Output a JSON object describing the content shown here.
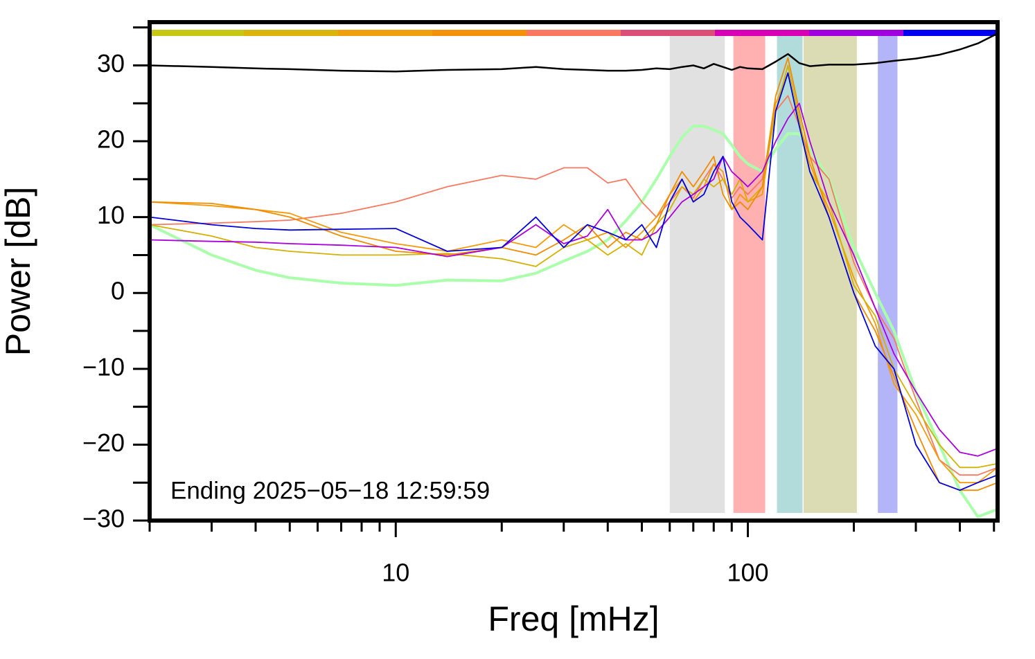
{
  "chart_data": {
    "type": "line",
    "x_label": "Freq [mHz]",
    "y_label": "Power [dB]",
    "annotation": "Ending 2025−05−18 12:59:59",
    "x_log": true,
    "xlim": [
      2,
      512
    ],
    "ylim": [
      -30,
      35.7
    ],
    "xticks": [
      10,
      100
    ],
    "x_minor_ticks": [
      2,
      3,
      4,
      5,
      6,
      7,
      8,
      9,
      20,
      30,
      40,
      50,
      60,
      70,
      80,
      90,
      200,
      300,
      400,
      500
    ],
    "yticks": [
      {
        "value": -30,
        "label": "−30"
      },
      {
        "value": -20,
        "label": "−20"
      },
      {
        "value": -10,
        "label": "−10"
      },
      0,
      10,
      20,
      30
    ],
    "y_minor_ticks": [
      -25,
      -15,
      -5,
      5,
      15,
      25,
      35
    ],
    "color_bar": [
      "#c8c814",
      "#dab40a",
      "#f0a00a",
      "#f5900a",
      "#fa7860",
      "#dc5078",
      "#d800b4",
      "#a000e0",
      "#0000f0"
    ],
    "bands": [
      {
        "x": [
          60,
          86
        ],
        "color": "#e1e1e1"
      },
      {
        "x": [
          91,
          112
        ],
        "color": "#ffb0b0"
      },
      {
        "x": [
          121,
          143
        ],
        "color": "#b2dcdc"
      },
      {
        "x": [
          144,
          204
        ],
        "color": "#dcdcb4"
      },
      {
        "x": [
          234,
          266
        ],
        "color": "#b4b4f8"
      }
    ],
    "x": [
      2,
      3,
      4,
      5,
      7,
      10,
      14,
      20,
      25,
      30,
      35,
      40,
      45,
      50,
      55,
      60,
      65,
      70,
      75,
      80,
      85,
      90,
      95,
      100,
      110,
      120,
      130,
      140,
      150,
      170,
      200,
      230,
      260,
      300,
      350,
      400,
      450,
      512
    ],
    "series": [
      {
        "color": "#000000",
        "line_width": 2.5,
        "values": [
          30,
          29.8,
          29.6,
          29.5,
          29.3,
          29.2,
          29.4,
          29.5,
          29.8,
          29.5,
          29.4,
          29.3,
          29.3,
          29.4,
          29.6,
          29.5,
          29.8,
          30,
          29.6,
          30.2,
          29.8,
          29.4,
          29.8,
          29.6,
          29.5,
          30.5,
          31.5,
          30.3,
          29.9,
          30.1,
          30.1,
          30.3,
          30.6,
          30.9,
          31.4,
          32.1,
          32.9,
          34.2
        ]
      },
      {
        "color": "#aaffaa",
        "line_width": 4,
        "values": [
          9,
          5,
          3,
          2,
          1.3,
          1,
          1.7,
          1.6,
          2.6,
          4.2,
          5.5,
          7,
          9.5,
          12,
          15,
          18,
          20.5,
          22,
          22,
          21.5,
          21,
          19.5,
          18,
          17,
          16,
          19,
          21,
          21,
          19,
          15,
          6,
          0,
          -5,
          -13,
          -20,
          -26,
          -29.5,
          -28.5
        ]
      },
      {
        "color": "#fa7860",
        "line_width": 1.8,
        "values": [
          9,
          9.2,
          9.4,
          9.6,
          10.5,
          12,
          14,
          15.5,
          15,
          16.5,
          16.5,
          14.5,
          15,
          12,
          10,
          12,
          14,
          12.5,
          15,
          17,
          15,
          12.5,
          14,
          13,
          15,
          24,
          26,
          22,
          18,
          15,
          4,
          -2,
          -6,
          -14,
          -22,
          -24,
          -24,
          -23
        ]
      },
      {
        "color": "#f59a0a",
        "line_width": 1.8,
        "values": [
          12,
          11.5,
          11,
          10.5,
          8,
          6.5,
          5.5,
          7,
          6,
          9,
          7,
          8,
          6,
          8,
          10,
          13,
          15,
          12,
          14,
          17,
          16,
          11,
          13,
          12,
          13,
          25,
          29,
          22,
          17,
          11,
          2,
          -4,
          -12,
          -16,
          -22,
          -25,
          -25,
          -23
        ]
      },
      {
        "color": "#d4b000",
        "line_width": 1.8,
        "values": [
          9,
          7.5,
          6,
          5.5,
          5,
          5,
          5.2,
          4.5,
          3.5,
          6,
          7,
          5,
          6.5,
          5,
          9,
          11,
          14,
          13,
          15,
          14,
          15,
          13,
          15,
          12,
          14,
          24,
          30,
          23,
          16,
          12,
          1,
          -3,
          -10,
          -15,
          -20,
          -23,
          -23,
          -22.5
        ]
      },
      {
        "color": "#f08c00",
        "line_width": 1.8,
        "values": [
          12,
          11.8,
          11,
          10,
          7.5,
          5.5,
          5,
          6,
          5,
          7,
          9,
          6,
          8,
          7,
          9,
          13,
          16,
          14,
          16,
          18,
          13,
          11,
          12,
          11,
          14,
          26,
          31,
          24,
          18,
          10,
          0,
          -5,
          -11,
          -18,
          -25,
          -26,
          -26,
          -25
        ]
      },
      {
        "color": "#aa00dd",
        "line_width": 1.8,
        "values": [
          7,
          6.8,
          6.7,
          6.5,
          6.3,
          6,
          4.8,
          6,
          9,
          6.5,
          7.5,
          11,
          7,
          7,
          8,
          10,
          12,
          13,
          14,
          15,
          18,
          16,
          15,
          14,
          16,
          20,
          23,
          25,
          20,
          12,
          5,
          -2,
          -8,
          -13,
          -18,
          -21,
          -21.5,
          -20.5
        ]
      },
      {
        "color": "#0000dd",
        "line_width": 1.8,
        "values": [
          10,
          9,
          8.5,
          8.3,
          8.4,
          8.5,
          5.5,
          6,
          10,
          6,
          9,
          8,
          7,
          9,
          6,
          12,
          15,
          12,
          13,
          16,
          18,
          12,
          10,
          9,
          7,
          24,
          29,
          22,
          16,
          10,
          0,
          -7,
          -10,
          -20,
          -25,
          -26,
          -25,
          -24
        ]
      }
    ]
  }
}
